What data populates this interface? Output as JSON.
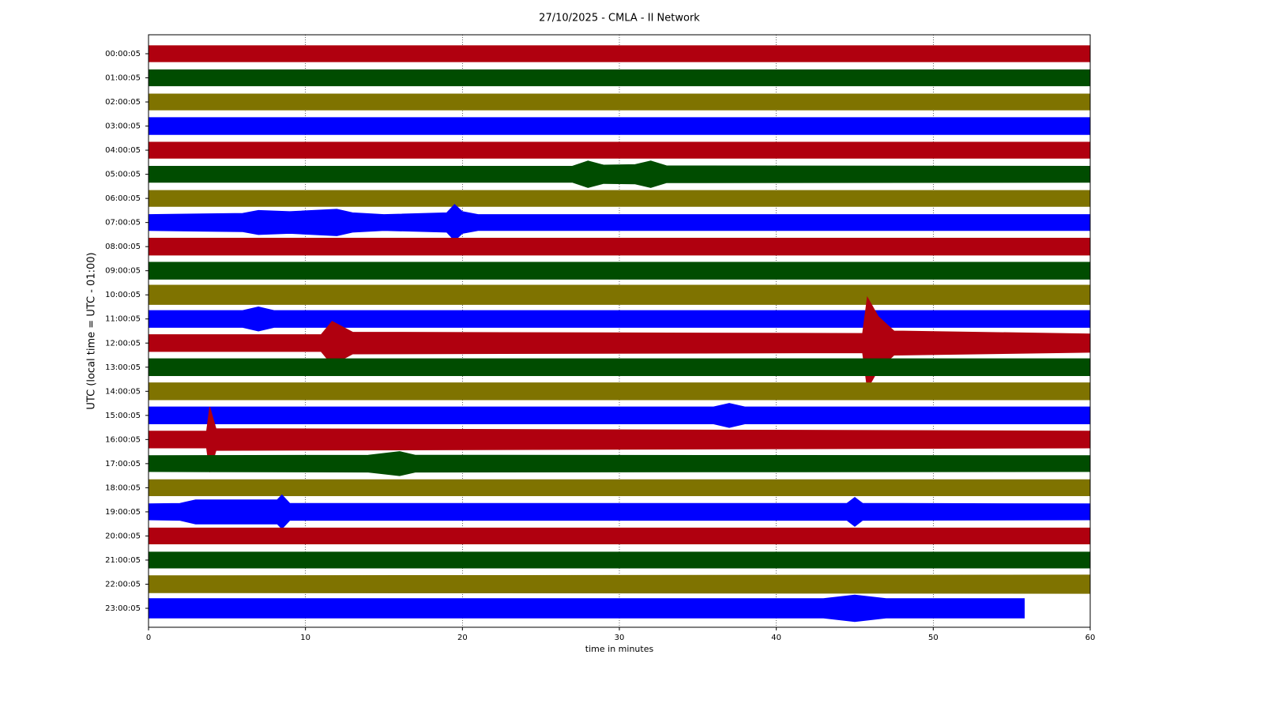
{
  "chart_data": {
    "type": "helicorder",
    "title": "27/10/2025 - CMLA - II Network",
    "x_label": "time in minutes",
    "y_label": "UTC (local time = UTC - 01:00)",
    "xlim": [
      0,
      60
    ],
    "xticks": [
      0,
      10,
      20,
      30,
      40,
      50,
      60
    ],
    "grid": true,
    "series": [
      {
        "name": "00:00:05",
        "color": "#b0000f",
        "x": [
          0,
          60
        ],
        "values": [
          0.33,
          0.33
        ]
      },
      {
        "name": "01:00:05",
        "color": "#004c00",
        "x": [
          0,
          60
        ],
        "values": [
          0.33,
          0.33
        ]
      },
      {
        "name": "02:00:05",
        "color": "#7f7300",
        "x": [
          0,
          60
        ],
        "values": [
          0.33,
          0.33
        ]
      },
      {
        "name": "03:00:05",
        "color": "#0000ff",
        "x": [
          0,
          60
        ],
        "values": [
          0.35,
          0.35
        ]
      },
      {
        "name": "04:00:05",
        "color": "#b0000f",
        "x": [
          0,
          60
        ],
        "values": [
          0.33,
          0.33
        ]
      },
      {
        "name": "05:00:05",
        "color": "#004c00",
        "x": [
          0,
          27,
          28,
          29,
          31,
          32,
          33,
          60
        ],
        "values": [
          0.33,
          0.33,
          0.55,
          0.38,
          0.4,
          0.55,
          0.35,
          0.33
        ]
      },
      {
        "name": "06:00:05",
        "color": "#7f7300",
        "x": [
          0,
          60
        ],
        "values": [
          0.33,
          0.33
        ]
      },
      {
        "name": "07:00:05",
        "color": "#0000ff",
        "x": [
          0,
          6,
          7,
          9,
          12,
          13,
          15,
          19,
          19.5,
          20,
          21,
          60
        ],
        "values": [
          0.33,
          0.38,
          0.5,
          0.45,
          0.55,
          0.4,
          0.33,
          0.4,
          0.75,
          0.45,
          0.33,
          0.33
        ]
      },
      {
        "name": "08:00:05",
        "color": "#b0000f",
        "x": [
          0,
          60
        ],
        "values": [
          0.35,
          0.35
        ]
      },
      {
        "name": "09:00:05",
        "color": "#004c00",
        "x": [
          0,
          60
        ],
        "values": [
          0.35,
          0.35
        ]
      },
      {
        "name": "10:00:05",
        "color": "#7f7300",
        "x": [
          0,
          60
        ],
        "values": [
          0.4,
          0.4
        ]
      },
      {
        "name": "11:00:05",
        "color": "#0000ff",
        "x": [
          0,
          6,
          7,
          8,
          60
        ],
        "values": [
          0.35,
          0.35,
          0.5,
          0.35,
          0.35
        ]
      },
      {
        "name": "12:00:05",
        "color": "#b0000f",
        "x": [
          0,
          11,
          11.7,
          13,
          45.5,
          45.8,
          46.5,
          47.5,
          60
        ],
        "values": [
          0.35,
          0.35,
          0.9,
          0.45,
          0.4,
          1.9,
          1.1,
          0.5,
          0.38
        ]
      },
      {
        "name": "13:00:05",
        "color": "#004c00",
        "x": [
          0,
          60
        ],
        "values": [
          0.35,
          0.35
        ]
      },
      {
        "name": "14:00:05",
        "color": "#7f7300",
        "x": [
          0,
          60
        ],
        "values": [
          0.35,
          0.35
        ]
      },
      {
        "name": "15:00:05",
        "color": "#0000ff",
        "x": [
          0,
          36,
          37,
          38,
          60
        ],
        "values": [
          0.35,
          0.35,
          0.5,
          0.35,
          0.35
        ]
      },
      {
        "name": "16:00:05",
        "color": "#b0000f",
        "x": [
          0,
          3.7,
          3.9,
          4.3,
          60
        ],
        "values": [
          0.35,
          0.35,
          1.35,
          0.45,
          0.35
        ]
      },
      {
        "name": "17:00:05",
        "color": "#004c00",
        "x": [
          0,
          14,
          16,
          17,
          60
        ],
        "values": [
          0.33,
          0.35,
          0.5,
          0.35,
          0.33
        ]
      },
      {
        "name": "18:00:05",
        "color": "#7f7300",
        "x": [
          0,
          60
        ],
        "values": [
          0.33,
          0.33
        ]
      },
      {
        "name": "19:00:05",
        "color": "#0000ff",
        "x": [
          0,
          2,
          3,
          8.2,
          8.5,
          9,
          44.5,
          45,
          45.5,
          60
        ],
        "values": [
          0.33,
          0.35,
          0.5,
          0.5,
          0.7,
          0.35,
          0.35,
          0.6,
          0.35,
          0.33
        ]
      },
      {
        "name": "20:00:05",
        "color": "#b0000f",
        "x": [
          0,
          60
        ],
        "values": [
          0.33,
          0.33
        ]
      },
      {
        "name": "21:00:05",
        "color": "#004c00",
        "x": [
          0,
          60
        ],
        "values": [
          0.33,
          0.33
        ]
      },
      {
        "name": "22:00:05",
        "color": "#7f7300",
        "x": [
          0,
          60
        ],
        "values": [
          0.35,
          0.38
        ]
      },
      {
        "name": "23:00:05",
        "color": "#0000ff",
        "x": [
          0,
          43,
          45,
          47,
          55.8
        ],
        "values": [
          0.4,
          0.4,
          0.55,
          0.4,
          0.4
        ]
      }
    ]
  }
}
